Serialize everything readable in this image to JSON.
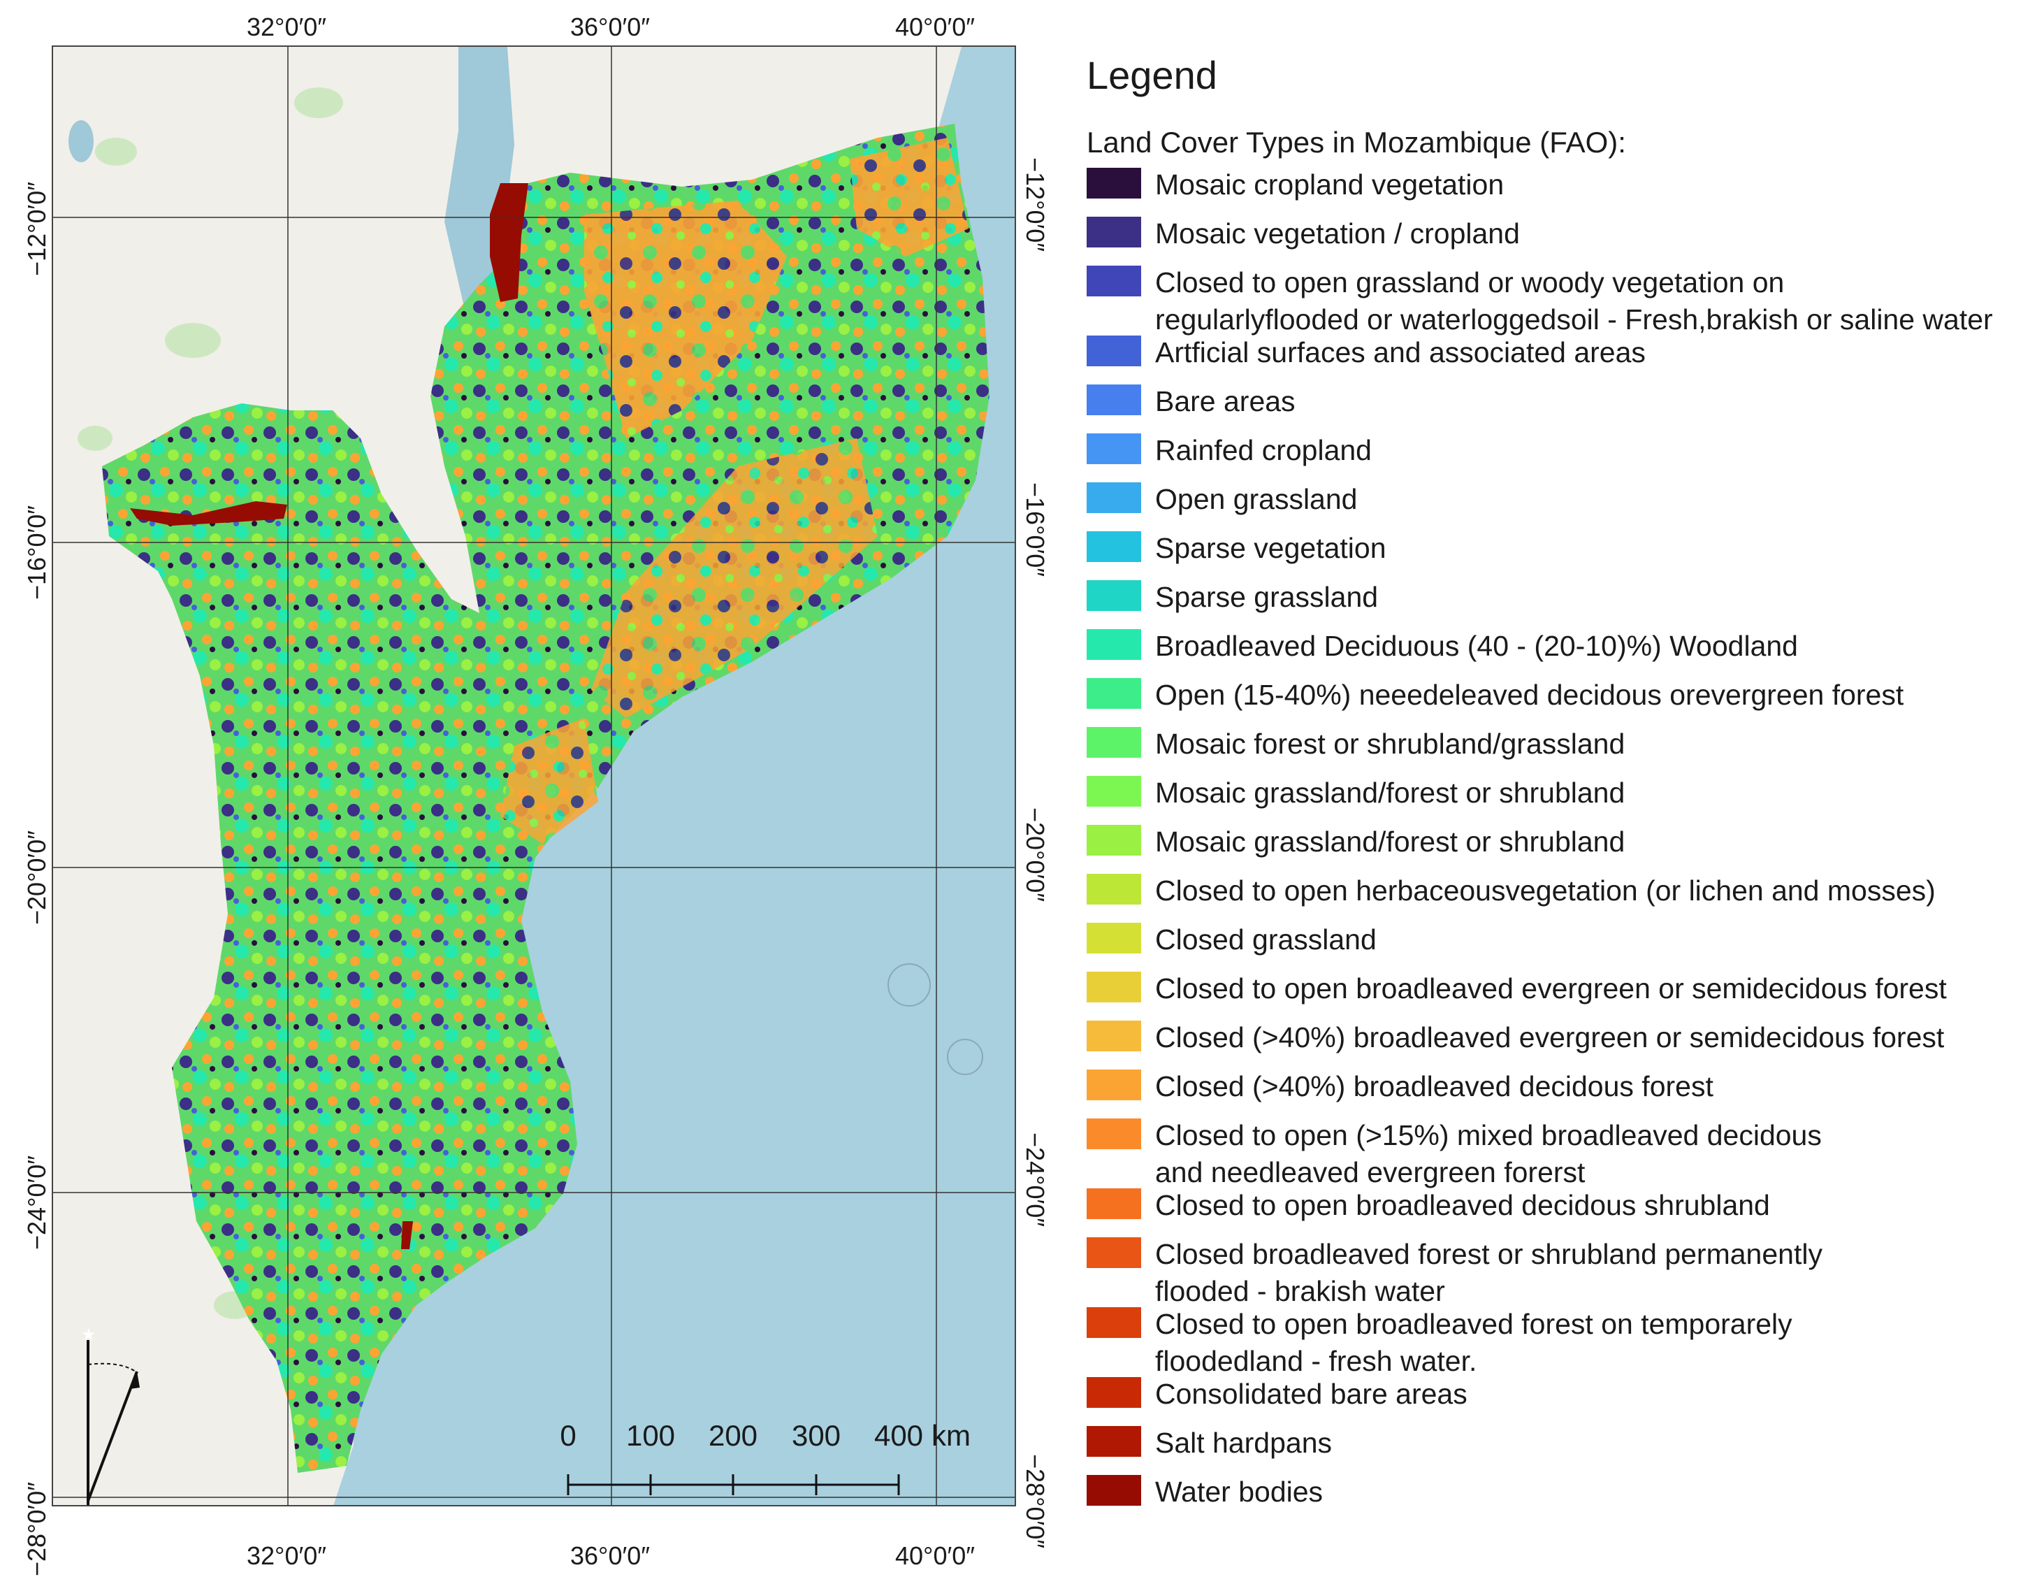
{
  "coords": {
    "top": [
      "32°0′0″",
      "36°0′0″",
      "40°0′0″"
    ],
    "bottom": [
      "32°0′0″",
      "36°0′0″",
      "40°0′0″"
    ],
    "left": [
      "−12°0′0″",
      "−16°0′0″",
      "−20°0′0″",
      "−24°0′0″",
      "−28°0′0″"
    ],
    "right": [
      "−12°0′0″",
      "−16°0′0″",
      "−20°0′0″",
      "−24°0′0″",
      "−28°0′0″"
    ]
  },
  "legend": {
    "title": "Legend",
    "subtitle": "Land Cover Types in Mozambique (FAO):",
    "items": [
      {
        "label": "Mosaic cropland vegetation",
        "color": "#2a0f3d"
      },
      {
        "label": "Mosaic vegetation / cropland",
        "color": "#3b2f86"
      },
      {
        "label": "Closed to open grassland or woody vegetation on\nregularlyflooded or waterloggedsoil - Fresh,brakish or saline water",
        "color": "#4045b8"
      },
      {
        "label": "Artficial surfaces and associated areas",
        "color": "#4263d8"
      },
      {
        "label": "Bare areas",
        "color": "#477fef"
      },
      {
        "label": "Rainfed cropland",
        "color": "#4595f5"
      },
      {
        "label": "Open grassland",
        "color": "#37abee"
      },
      {
        "label": "Sparse vegetation",
        "color": "#22c2e0"
      },
      {
        "label": "Sparse grassland",
        "color": "#1ed5c6"
      },
      {
        "label": "Broadleaved Deciduous (40 - (20-10)%) Woodland",
        "color": "#25e8ad"
      },
      {
        "label": "Open (15-40%) neeedeleaved decidous orevergreen forest",
        "color": "#3ded8a"
      },
      {
        "label": "Mosaic forest or shrubland/grassland",
        "color": "#5df368"
      },
      {
        "label": "Mosaic grassland/forest or shrubland",
        "color": "#7cf751"
      },
      {
        "label": "Mosaic grassland/forest or shrubland",
        "color": "#9af043"
      },
      {
        "label": "Closed to open herbaceousvegetation (or lichen and mosses)",
        "color": "#bce737"
      },
      {
        "label": "Closed grassland",
        "color": "#d5e034"
      },
      {
        "label": "Closed to open broadleaved evergreen or  semidecidous forest",
        "color": "#e8cf38"
      },
      {
        "label": "Closed (>40%) broadleaved evergreen or semidecidous forest",
        "color": "#f6bb3b"
      },
      {
        "label": "Closed (>40%) broadleaved decidous forest",
        "color": "#fca433"
      },
      {
        "label": "Closed to open (>15%) mixed broadleaved decidous\nand needleaved evergreen forerst",
        "color": "#fb8b2a"
      },
      {
        "label": "Closed to open broadleaved decidous shrubland",
        "color": "#f5701f"
      },
      {
        "label": "Closed broadleaved forest or shrubland permanently\nflooded - brakish water",
        "color": "#e95515"
      },
      {
        "label": "Closed to open broadleaved  forest on temporarely\nfloodedland - fresh water.",
        "color": "#da3f0c"
      },
      {
        "label": "Consolidated bare areas",
        "color": "#c82a06"
      },
      {
        "label": "Salt hardpans",
        "color": "#b01803"
      },
      {
        "label": "Water bodies",
        "color": "#960c02"
      }
    ]
  },
  "scalebar": {
    "ticks": [
      "0",
      "100",
      "200",
      "300",
      "400"
    ],
    "unit": "km"
  },
  "colors": {
    "ocean": "#a8d0df",
    "land_base": "#f1efe9",
    "lake": "#9fc8d8"
  }
}
